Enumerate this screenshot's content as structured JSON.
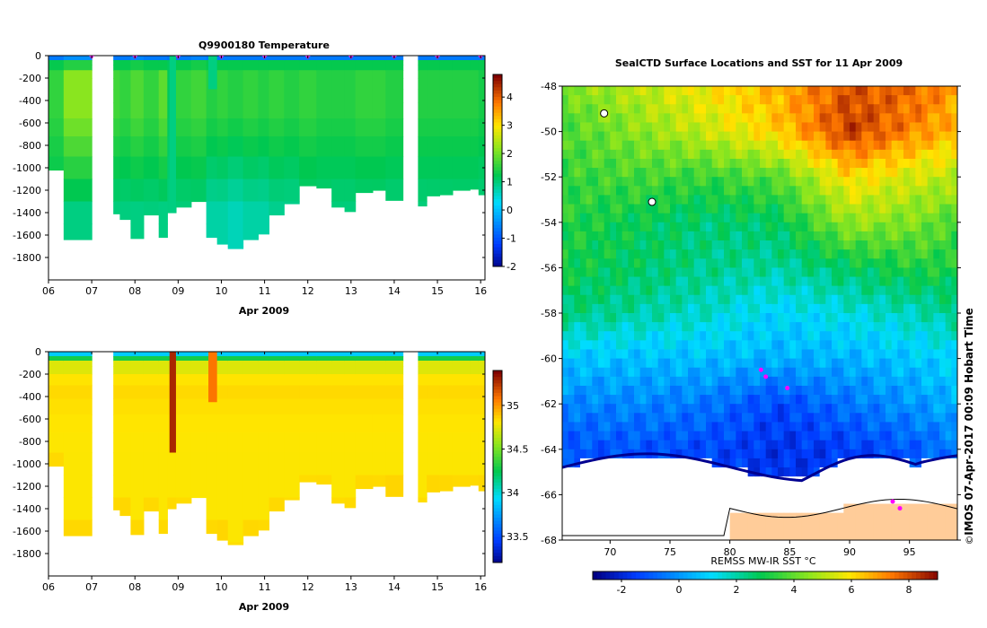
{
  "chart_data": [
    {
      "type": "heatmap",
      "title": "Q9900180  Temperature",
      "xlabel": "Apr 2009",
      "ylabel": "",
      "x_ticks": [
        "06",
        "07",
        "08",
        "09",
        "10",
        "11",
        "12",
        "13",
        "14",
        "15",
        "16"
      ],
      "y_ticks": [
        "0",
        "-200",
        "-400",
        "-600",
        "-800",
        "-1000",
        "-1200",
        "-1400",
        "-1600",
        "-1800"
      ],
      "xlim": [
        6,
        16.1
      ],
      "ylim": [
        -2000,
        0
      ],
      "colorbar": {
        "ticks": [
          "-2",
          "-1",
          "0",
          "1",
          "2",
          "3",
          "4"
        ],
        "range": [
          -2,
          4.8
        ]
      },
      "series_name": "temperature_profiles",
      "profiles": [
        {
          "x": 6.0,
          "width": 0.35,
          "max_depth": 1020,
          "top": 1.0,
          "mid": 1.6,
          "deep": 1.1
        },
        {
          "x": 6.35,
          "width": 0.65,
          "max_depth": 1640,
          "top": 1.2,
          "mid": 2.2,
          "deep": 1.0
        },
        {
          "x": 7.5,
          "width": 0.15,
          "max_depth": 1410,
          "top": 1.0,
          "mid": 1.7,
          "deep": 1.0
        },
        {
          "x": 7.65,
          "width": 0.25,
          "max_depth": 1460,
          "top": 1.0,
          "mid": 1.6,
          "deep": 1.0
        },
        {
          "x": 7.9,
          "width": 0.3,
          "max_depth": 1630,
          "top": 1.1,
          "mid": 1.8,
          "deep": 1.0
        },
        {
          "x": 8.2,
          "width": 0.35,
          "max_depth": 1420,
          "top": 1.0,
          "mid": 1.6,
          "deep": 1.0
        },
        {
          "x": 8.55,
          "width": 0.2,
          "max_depth": 1620,
          "top": 1.0,
          "mid": 1.9,
          "deep": 1.0
        },
        {
          "x": 8.75,
          "width": 0.2,
          "max_depth": 1400,
          "top": 0.9,
          "mid": 1.2,
          "deep": 1.0
        },
        {
          "x": 8.95,
          "width": 0.35,
          "max_depth": 1350,
          "top": 1.0,
          "mid": 1.6,
          "deep": 1.0
        },
        {
          "x": 9.3,
          "width": 0.35,
          "max_depth": 1300,
          "top": 1.1,
          "mid": 1.7,
          "deep": 1.0
        },
        {
          "x": 9.65,
          "width": 0.25,
          "max_depth": 1620,
          "top": 1.0,
          "mid": 1.5,
          "deep": 0.8
        },
        {
          "x": 9.9,
          "width": 0.25,
          "max_depth": 1680,
          "top": 1.0,
          "mid": 1.6,
          "deep": 0.8
        },
        {
          "x": 10.15,
          "width": 0.35,
          "max_depth": 1720,
          "top": 1.0,
          "mid": 1.5,
          "deep": 0.7
        },
        {
          "x": 10.5,
          "width": 0.35,
          "max_depth": 1640,
          "top": 1.0,
          "mid": 1.6,
          "deep": 0.8
        },
        {
          "x": 10.85,
          "width": 0.25,
          "max_depth": 1590,
          "top": 1.0,
          "mid": 1.5,
          "deep": 0.8
        },
        {
          "x": 11.1,
          "width": 0.35,
          "max_depth": 1420,
          "top": 1.0,
          "mid": 1.6,
          "deep": 0.9
        },
        {
          "x": 11.45,
          "width": 0.35,
          "max_depth": 1320,
          "top": 1.0,
          "mid": 1.5,
          "deep": 0.9
        },
        {
          "x": 11.8,
          "width": 0.4,
          "max_depth": 1160,
          "top": 1.0,
          "mid": 1.6,
          "deep": 1.0
        },
        {
          "x": 12.2,
          "width": 0.35,
          "max_depth": 1180,
          "top": 1.0,
          "mid": 1.5,
          "deep": 1.0
        },
        {
          "x": 12.55,
          "width": 0.3,
          "max_depth": 1350,
          "top": 1.0,
          "mid": 1.5,
          "deep": 1.0
        },
        {
          "x": 12.85,
          "width": 0.25,
          "max_depth": 1390,
          "top": 1.0,
          "mid": 1.5,
          "deep": 1.0
        },
        {
          "x": 13.1,
          "width": 0.4,
          "max_depth": 1220,
          "top": 1.0,
          "mid": 1.6,
          "deep": 1.0
        },
        {
          "x": 13.5,
          "width": 0.3,
          "max_depth": 1200,
          "top": 1.0,
          "mid": 1.6,
          "deep": 1.0
        },
        {
          "x": 13.8,
          "width": 0.4,
          "max_depth": 1290,
          "top": 1.0,
          "mid": 1.5,
          "deep": 1.0
        },
        {
          "x": 14.55,
          "width": 0.2,
          "max_depth": 1340,
          "top": 1.0,
          "mid": 1.5,
          "deep": 1.0
        },
        {
          "x": 14.75,
          "width": 0.3,
          "max_depth": 1250,
          "top": 1.0,
          "mid": 1.5,
          "deep": 1.0
        },
        {
          "x": 15.05,
          "width": 0.3,
          "max_depth": 1240,
          "top": 1.0,
          "mid": 1.5,
          "deep": 1.0
        },
        {
          "x": 15.35,
          "width": 0.4,
          "max_depth": 1200,
          "top": 1.0,
          "mid": 1.5,
          "deep": 1.0
        },
        {
          "x": 15.75,
          "width": 0.2,
          "max_depth": 1190,
          "top": 1.0,
          "mid": 1.5,
          "deep": 1.0
        },
        {
          "x": 15.95,
          "width": 0.15,
          "max_depth": 1240,
          "top": 1.0,
          "mid": 1.4,
          "deep": 1.0
        }
      ],
      "anomalies": [
        {
          "x": 8.8,
          "width": 0.15,
          "from": 0,
          "to": 1400,
          "value": 1.0
        },
        {
          "x": 9.7,
          "width": 0.2,
          "from": 0,
          "to": 300,
          "value": 1.0
        }
      ],
      "surface_markers_x": [
        7,
        8,
        9,
        10,
        11,
        12,
        13,
        14,
        15,
        16
      ]
    },
    {
      "type": "heatmap",
      "title": "",
      "xlabel": "Apr 2009",
      "ylabel": "",
      "x_ticks": [
        "06",
        "07",
        "08",
        "09",
        "10",
        "11",
        "12",
        "13",
        "14",
        "15",
        "16"
      ],
      "y_ticks": [
        "0",
        "-200",
        "-400",
        "-600",
        "-800",
        "-1000",
        "-1200",
        "-1400",
        "-1600",
        "-1800"
      ],
      "xlim": [
        6,
        16.1
      ],
      "ylim": [
        -2000,
        0
      ],
      "colorbar": {
        "ticks": [
          "33.5",
          "34",
          "34.5",
          "35"
        ],
        "range": [
          33.2,
          35.4
        ]
      },
      "series_name": "salinity_profiles",
      "anomalies": [
        {
          "x": 8.8,
          "width": 0.15,
          "from": 0,
          "to": 900,
          "value": 35.3
        },
        {
          "x": 9.7,
          "width": 0.2,
          "from": 0,
          "to": 450,
          "value": 35.1
        }
      ]
    },
    {
      "type": "heatmap",
      "title": "SealCTD  Surface Locations and SST for 11 Apr 2009",
      "xlabel": "REMSS MW-IR SST °C",
      "ylabel": "",
      "x_ticks": [
        "70",
        "75",
        "80",
        "85",
        "90",
        "95"
      ],
      "y_ticks": [
        "-48",
        "-50",
        "-52",
        "-54",
        "-56",
        "-58",
        "-60",
        "-62",
        "-64",
        "-66",
        "-68"
      ],
      "xlim": [
        66,
        99
      ],
      "ylim": [
        -68,
        -48
      ],
      "colorbar": {
        "ticks": [
          "-2",
          "0",
          "2",
          "4",
          "6",
          "8"
        ],
        "range": [
          -3,
          9
        ]
      },
      "sst_field": {
        "lon_nodes": [
          66,
          72,
          78,
          84,
          90,
          96,
          99
        ],
        "lat_nodes": [
          -48,
          -50,
          -52,
          -54,
          -56,
          -58,
          -60,
          -62,
          -64
        ],
        "values": [
          [
            4.2,
            5.0,
            5.8,
            6.6,
            7.8,
            7.5,
            6.8
          ],
          [
            3.6,
            4.4,
            5.2,
            6.2,
            8.2,
            7.0,
            6.4
          ],
          [
            3.4,
            3.6,
            3.4,
            3.8,
            6.0,
            5.2,
            5.0
          ],
          [
            3.2,
            2.8,
            2.4,
            2.6,
            4.6,
            4.2,
            3.6
          ],
          [
            3.0,
            2.6,
            2.2,
            2.0,
            2.6,
            3.2,
            3.0
          ],
          [
            2.4,
            2.0,
            1.6,
            1.0,
            1.4,
            1.8,
            2.2
          ],
          [
            0.8,
            0.6,
            0.6,
            0.4,
            0.4,
            0.8,
            1.0
          ],
          [
            -0.4,
            -0.3,
            -0.6,
            -1.4,
            -0.6,
            0.0,
            0.4
          ],
          [
            -1.2,
            -1.2,
            -1.4,
            -1.8,
            -1.6,
            -1.0,
            -0.6
          ]
        ]
      },
      "seal_positions": [
        {
          "lon": 82.6,
          "lat": -60.5
        },
        {
          "lon": 83.0,
          "lat": -60.8
        },
        {
          "lon": 84.8,
          "lat": -61.3
        },
        {
          "lon": 93.6,
          "lat": -66.3
        },
        {
          "lon": 94.2,
          "lat": -66.6
        }
      ],
      "islands": [
        {
          "lon": 69.5,
          "lat": -49.2
        },
        {
          "lon": 73.5,
          "lat": -53.1
        }
      ],
      "side_label": "IMOS 07-Apr-2017 00:09 Hobart Time",
      "copyright": "©"
    }
  ]
}
